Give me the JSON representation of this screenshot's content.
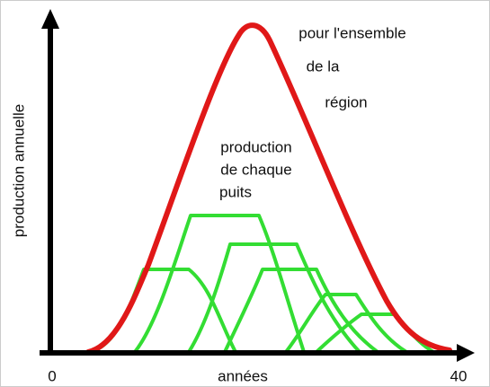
{
  "labels": {
    "y_axis": "production annuelle",
    "x_axis": "années",
    "x_start": "0",
    "x_end": "40",
    "region_lines": [
      "pour l'ensemble",
      "de la",
      "région"
    ],
    "well_lines": [
      "production",
      "de chaque",
      "puits"
    ]
  }
}
